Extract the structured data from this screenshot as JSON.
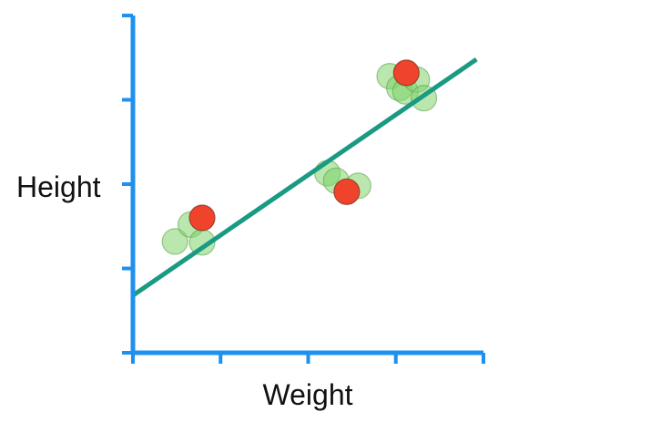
{
  "chart_data": {
    "type": "scatter",
    "title": "",
    "xlabel": "Weight",
    "ylabel": "Height",
    "xlim": [
      0,
      4
    ],
    "ylim": [
      0,
      4
    ],
    "x_ticks": [
      1,
      2,
      3,
      4
    ],
    "y_ticks": [
      1,
      2,
      3,
      4
    ],
    "grid": false,
    "series": [
      {
        "color": "#7fd46a",
        "points": [
          {
            "x": 0.48,
            "y": 1.32
          },
          {
            "x": 0.66,
            "y": 1.52
          },
          {
            "x": 0.79,
            "y": 1.31
          },
          {
            "x": 2.22,
            "y": 2.13
          },
          {
            "x": 2.32,
            "y": 2.04
          },
          {
            "x": 2.57,
            "y": 1.98
          },
          {
            "x": 2.93,
            "y": 3.28
          },
          {
            "x": 3.04,
            "y": 3.14
          },
          {
            "x": 3.11,
            "y": 3.1
          },
          {
            "x": 3.24,
            "y": 3.24
          },
          {
            "x": 3.32,
            "y": 3.02
          }
        ]
      },
      {
        "color": "#f0432c",
        "points": [
          {
            "x": 0.79,
            "y": 1.6
          },
          {
            "x": 2.44,
            "y": 1.91
          },
          {
            "x": 3.12,
            "y": 3.32
          }
        ]
      }
    ],
    "fit_line": {
      "color": "#1a9a82",
      "points": [
        {
          "x": 0.0,
          "y": 0.68
        },
        {
          "x": 3.92,
          "y": 3.48
        }
      ]
    },
    "axis_color": "#1e90ee"
  }
}
